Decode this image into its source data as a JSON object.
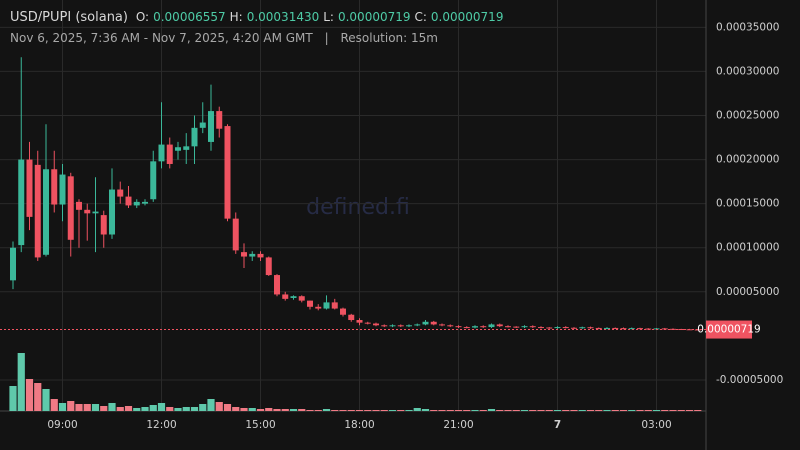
{
  "header": {
    "title": "USD/PUPI (solana)",
    "ohlc": [
      {
        "label": "O:",
        "value": "0.00006557"
      },
      {
        "label": "H:",
        "value": "0.00031430"
      },
      {
        "label": "L:",
        "value": "0.00000719"
      },
      {
        "label": "C:",
        "value": "0.00000719"
      }
    ],
    "range": "Nov 6, 2025, 7:36 AM - Nov 7, 2025, 4:20 AM GMT",
    "separator": "|",
    "resolution": "Resolution: 15m"
  },
  "watermark": "defined.fi",
  "chart_data": {
    "type": "candlestick",
    "up_color": "#3bb89a",
    "down_color": "#ef5361",
    "up_volume_color": "#5fc9ab",
    "down_volume_color": "#f07a85",
    "ylim": [
      -8.52e-05,
      0.000381
    ],
    "yticks": [
      {
        "value": 0.00035,
        "label": "0.00035000"
      },
      {
        "value": 0.0003,
        "label": "0.00030000"
      },
      {
        "value": 0.00025,
        "label": "0.00025000"
      },
      {
        "value": 0.0002,
        "label": "0.00020000"
      },
      {
        "value": 0.00015,
        "label": "0.00015000"
      },
      {
        "value": 0.0001,
        "label": "0.00010000"
      },
      {
        "value": 5e-05,
        "label": "0.00005000"
      },
      {
        "value": -5e-05,
        "label": "-0.00005000"
      }
    ],
    "last_price": {
      "value": 7.19e-06,
      "label": "0.00000719"
    },
    "grid": true,
    "categories": [
      null,
      null,
      null,
      null,
      null,
      null,
      "09:00",
      null,
      null,
      null,
      null,
      null,
      null,
      null,
      null,
      null,
      null,
      null,
      "12:00",
      null,
      null,
      null,
      null,
      null,
      null,
      null,
      null,
      null,
      null,
      null,
      "15:00",
      null,
      null,
      null,
      null,
      null,
      null,
      null,
      null,
      null,
      null,
      null,
      "18:00",
      null,
      null,
      null,
      null,
      null,
      null,
      null,
      null,
      null,
      null,
      null,
      "21:00",
      null,
      null,
      null,
      null,
      null,
      null,
      null,
      null,
      null,
      null,
      null,
      "7",
      null,
      null,
      null,
      null,
      null,
      null,
      null,
      null,
      null,
      null,
      null,
      "03:00",
      null,
      null,
      null,
      null,
      null
    ],
    "candles": [
      [
        6.3e-05,
        0.000107,
        5.3e-05,
        0.0001
      ],
      [
        0.000103,
        0.000316,
        9.5e-05,
        0.0002
      ],
      [
        0.0002,
        0.00022,
        0.00012,
        0.000135
      ],
      [
        0.000194,
        0.00021,
        8.5e-05,
        8.9e-05
      ],
      [
        9.2e-05,
        0.00024,
        9e-05,
        0.000189
      ],
      [
        0.000189,
        0.00021,
        0.00014,
        0.000149
      ],
      [
        0.000149,
        0.000195,
        0.00013,
        0.000183
      ],
      [
        0.000181,
        0.000185,
        9e-05,
        0.000109
      ],
      [
        0.000152,
        0.000155,
        0.0001,
        0.000143
      ],
      [
        0.000143,
        0.00015,
        0.000108,
        0.000139
      ],
      [
        0.000139,
        0.00018,
        9.5e-05,
        0.000141
      ],
      [
        0.000137,
        0.000142,
        0.0001,
        0.000115
      ],
      [
        0.000115,
        0.00019,
        0.00011,
        0.000166
      ],
      [
        0.000166,
        0.000175,
        0.00015,
        0.000158
      ],
      [
        0.000158,
        0.00017,
        0.000145,
        0.000148
      ],
      [
        0.000148,
        0.000155,
        0.000145,
        0.000152
      ],
      [
        0.00015,
        0.000155,
        0.000148,
        0.000152
      ],
      [
        0.000155,
        0.00021,
        0.000152,
        0.000198
      ],
      [
        0.000198,
        0.000265,
        0.00019,
        0.000217
      ],
      [
        0.000217,
        0.000225,
        0.00019,
        0.000195
      ],
      [
        0.00021,
        0.00022,
        0.0002,
        0.000214
      ],
      [
        0.000211,
        0.00023,
        0.000195,
        0.000215
      ],
      [
        0.000215,
        0.00025,
        0.000195,
        0.000236
      ],
      [
        0.000236,
        0.000265,
        0.00023,
        0.000242
      ],
      [
        0.00022,
        0.000285,
        0.00021,
        0.000255
      ],
      [
        0.000255,
        0.00026,
        0.000225,
        0.000235
      ],
      [
        0.000238,
        0.00024,
        0.00013,
        0.000133
      ],
      [
        0.000133,
        0.00014,
        9.3e-05,
        9.7e-05
      ],
      [
        9.5e-05,
        0.000105,
        7.7e-05,
        9e-05
      ],
      [
        9e-05,
        9.6e-05,
        8.5e-05,
        9.3e-05
      ],
      [
        9.3e-05,
        9.6e-05,
        8.5e-05,
        8.9e-05
      ],
      [
        8.9e-05,
        9e-05,
        6.8e-05,
        6.9e-05
      ],
      [
        6.9e-05,
        7e-05,
        4.5e-05,
        4.7e-05
      ],
      [
        4.7e-05,
        5e-05,
        4e-05,
        4.2e-05
      ],
      [
        4.3e-05,
        4.6e-05,
        4.1e-05,
        4.5e-05
      ],
      [
        4.5e-05,
        4.6e-05,
        3.8e-05,
        4e-05
      ],
      [
        4e-05,
        4e-05,
        3e-05,
        3.3e-05
      ],
      [
        3.3e-05,
        3.6e-05,
        2.9e-05,
        3.1e-05
      ],
      [
        3.1e-05,
        4.6e-05,
        3e-05,
        3.8e-05
      ],
      [
        3.8e-05,
        4.2e-05,
        3e-05,
        3.1e-05
      ],
      [
        3.1e-05,
        3.2e-05,
        2.2e-05,
        2.4e-05
      ],
      [
        2.4e-05,
        2.5e-05,
        1.6e-05,
        1.8e-05
      ],
      [
        1.8e-05,
        2e-05,
        1.2e-05,
        1.5e-05
      ],
      [
        1.5e-05,
        1.6e-05,
        1.3e-05,
        1.4e-05
      ],
      [
        1.4e-05,
        1.5e-05,
        1.1e-05,
        1.2e-05
      ],
      [
        1.2e-05,
        1.3e-05,
        1e-05,
        1.1e-05
      ],
      [
        1.1e-05,
        1.3e-05,
        1e-05,
        1.2e-05
      ],
      [
        1.2e-05,
        1.3e-05,
        1e-05,
        1.1e-05
      ],
      [
        1.1e-05,
        1.3e-05,
        1e-05,
        1.2e-05
      ],
      [
        1.2e-05,
        1.4e-05,
        1.1e-05,
        1.3e-05
      ],
      [
        1.3e-05,
        1.8e-05,
        1.2e-05,
        1.6e-05
      ],
      [
        1.6e-05,
        1.7e-05,
        1.2e-05,
        1.3e-05
      ],
      [
        1.3e-05,
        1.4e-05,
        1.1e-05,
        1.2e-05
      ],
      [
        1.2e-05,
        1.3e-05,
        1e-05,
        1.1e-05
      ],
      [
        1.1e-05,
        1.2e-05,
        9e-06,
        1e-05
      ],
      [
        1e-05,
        1.1e-05,
        8.5e-06,
        9.5e-06
      ],
      [
        9.5e-06,
        1.2e-05,
        8.5e-06,
        1.1e-05
      ],
      [
        1.1e-05,
        1.2e-05,
        9e-06,
        1e-05
      ],
      [
        1e-05,
        1.4e-05,
        9e-06,
        1.3e-05
      ],
      [
        1.3e-05,
        1.4e-05,
        1e-05,
        1.1e-05
      ],
      [
        1.1e-05,
        1.2e-05,
        9.5e-06,
        1.05e-05
      ],
      [
        1.05e-05,
        1.1e-05,
        9e-06,
        1e-05
      ],
      [
        1e-05,
        1.2e-05,
        9e-06,
        1.1e-05
      ],
      [
        1.1e-05,
        1.2e-05,
        9e-06,
        1e-05
      ],
      [
        1e-05,
        1.1e-05,
        8.5e-06,
        9.5e-06
      ],
      [
        9.5e-06,
        1e-05,
        8e-06,
        9e-06
      ],
      [
        9e-06,
        1.1e-05,
        8e-06,
        1e-05
      ],
      [
        1e-05,
        1.1e-05,
        8.5e-06,
        9.2e-06
      ],
      [
        9.2e-06,
        1e-05,
        8e-06,
        9e-06
      ],
      [
        9e-06,
        1.05e-05,
        8e-06,
        9.8e-06
      ],
      [
        9.8e-06,
        1.05e-05,
        8e-06,
        9e-06
      ],
      [
        9e-06,
        9.5e-06,
        7.5e-06,
        8.5e-06
      ],
      [
        8.5e-06,
        1e-05,
        7.5e-06,
        9e-06
      ],
      [
        9e-06,
        9.5e-06,
        8e-06,
        8.8e-06
      ],
      [
        8.8e-06,
        9.5e-06,
        7.5e-06,
        8.5e-06
      ],
      [
        8.5e-06,
        9.5e-06,
        7.5e-06,
        8.8e-06
      ],
      [
        8.8e-06,
        9.2e-06,
        7.5e-06,
        8.3e-06
      ],
      [
        8.3e-06,
        8.8e-06,
        7e-06,
        8e-06
      ],
      [
        8e-06,
        9e-06,
        7e-06,
        8.5e-06
      ],
      [
        8.5e-06,
        9e-06,
        7e-06,
        8e-06
      ],
      [
        8e-06,
        8.5e-06,
        7e-06,
        7.8e-06
      ],
      [
        7.8e-06,
        8e-06,
        7e-06,
        7.5e-06
      ],
      [
        7.5e-06,
        8e-06,
        7e-06,
        7.3e-06
      ],
      [
        7.3e-06,
        7.5e-06,
        7.19e-06,
        7.19e-06
      ]
    ],
    "volumes": [
      25,
      58,
      32,
      28,
      22,
      12,
      8,
      10,
      7,
      7,
      7,
      5,
      8,
      4,
      5,
      3,
      4,
      6,
      8,
      4,
      3,
      4,
      4,
      7,
      12,
      9,
      7,
      4,
      3,
      3,
      2,
      3,
      2,
      2,
      2,
      2,
      1,
      1,
      2,
      1,
      1,
      1,
      1,
      1,
      1,
      1,
      1,
      1,
      1,
      3,
      2,
      1,
      1,
      1,
      1,
      1,
      1,
      1,
      2,
      1,
      1,
      1,
      1,
      1,
      1,
      1,
      1,
      1,
      1,
      1,
      1,
      1,
      1,
      1,
      1,
      1,
      1,
      1,
      1,
      1,
      1,
      1,
      1,
      1
    ]
  }
}
